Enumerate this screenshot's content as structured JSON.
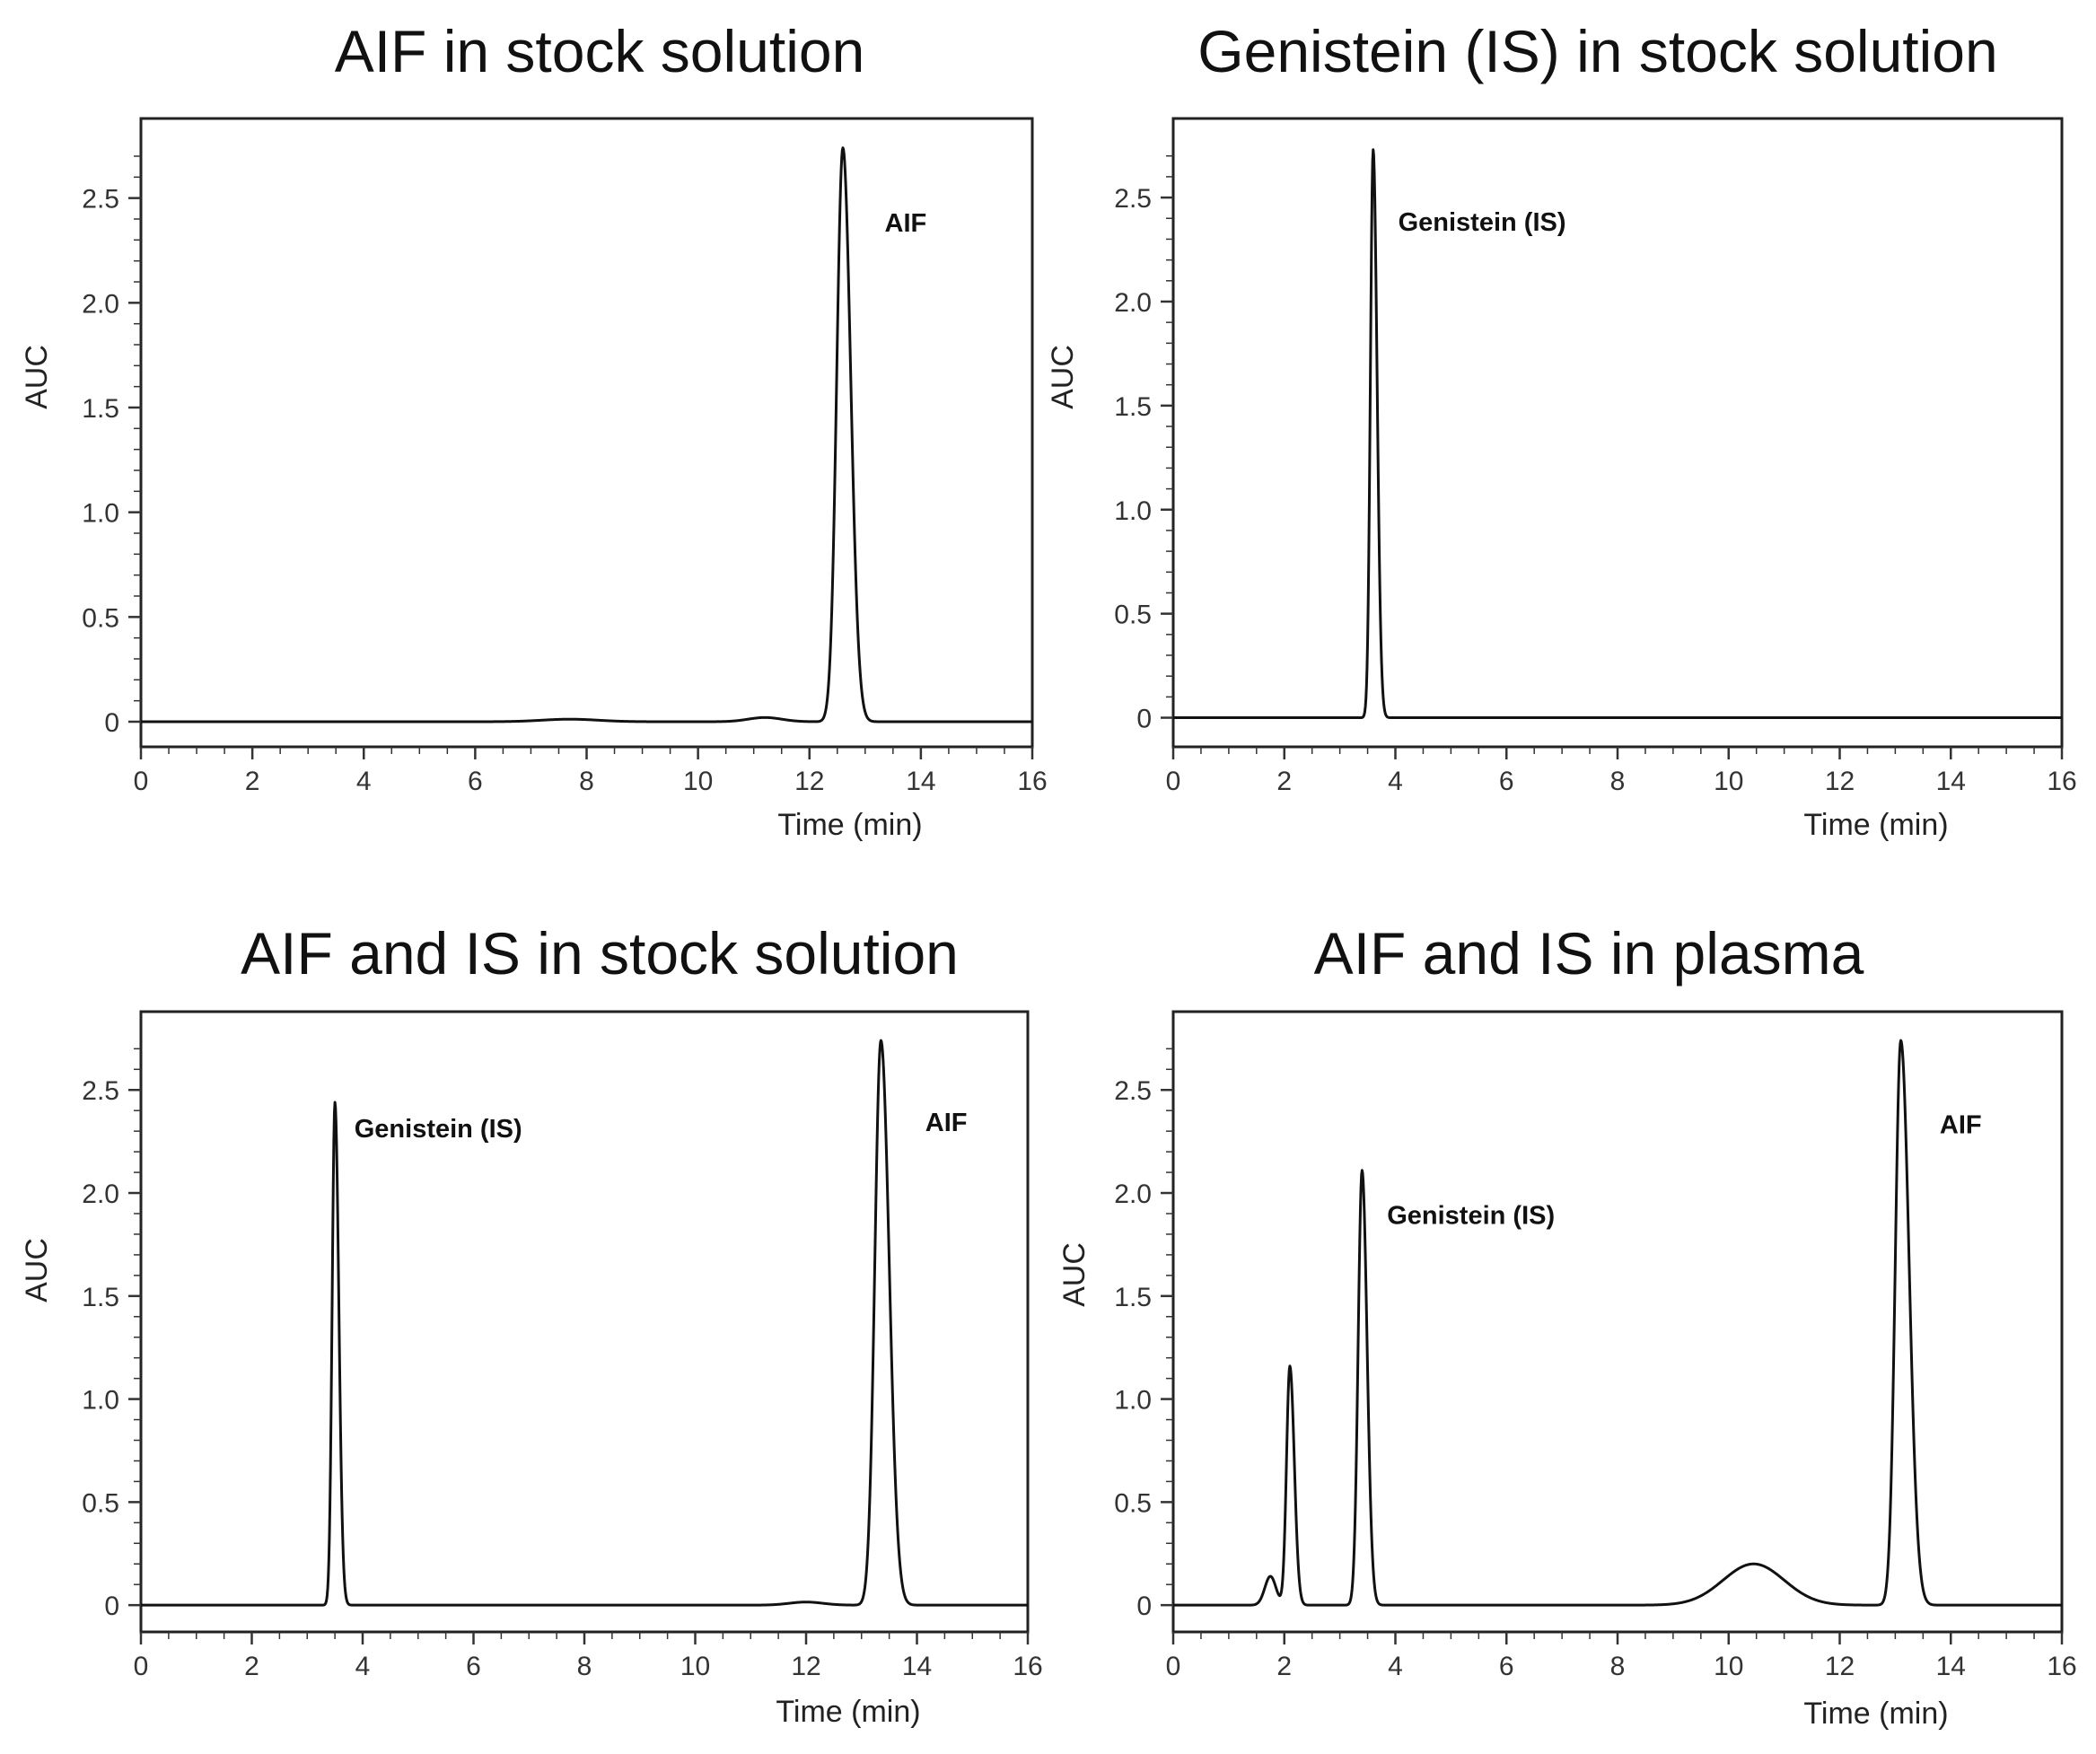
{
  "chart_data": [
    {
      "type": "line",
      "title": "AIF in stock solution",
      "xlabel": "Time (min)",
      "ylabel": "AUC",
      "xlim": [
        0,
        16
      ],
      "ylim": [
        -0.12,
        2.88
      ],
      "xticks": [
        0,
        2,
        4,
        6,
        8,
        10,
        12,
        14,
        16
      ],
      "yticks": [
        0,
        0.5,
        1.0,
        1.5,
        2.0,
        2.5
      ],
      "ytick_labels": [
        "0",
        "0.5",
        "1.0",
        "1.5",
        "2.0",
        "2.5"
      ],
      "grid": false,
      "peaks": [
        {
          "label": "AIF",
          "rt": 12.6,
          "height": 2.74,
          "width_left": 0.11,
          "width_right": 0.14,
          "label_x": 13.35,
          "label_y": 2.34
        }
      ],
      "humps": [
        {
          "center": 7.7,
          "height": 0.012,
          "width": 0.5
        },
        {
          "center": 11.2,
          "height": 0.02,
          "width": 0.3
        }
      ],
      "baseline": 0.0
    },
    {
      "type": "line",
      "title": "Genistein (IS) in stock solution",
      "xlabel": "Time (min)",
      "ylabel": "AUC",
      "xlim": [
        0,
        16
      ],
      "ylim": [
        -0.14,
        2.88
      ],
      "xticks": [
        0,
        2,
        4,
        6,
        8,
        10,
        12,
        14,
        16
      ],
      "yticks": [
        0,
        0.5,
        1.0,
        1.5,
        2.0,
        2.5
      ],
      "ytick_labels": [
        "0",
        "0.5",
        "1.0",
        "1.5",
        "2.0",
        "2.5"
      ],
      "grid": false,
      "peaks": [
        {
          "label": "Genistein (IS)",
          "rt": 3.6,
          "height": 2.73,
          "width_left": 0.05,
          "width_right": 0.07,
          "label_x": 4.05,
          "label_y": 2.34
        }
      ],
      "humps": [],
      "baseline": 0.0
    },
    {
      "type": "line",
      "title": "AIF and IS in stock solution",
      "xlabel": "Time (min)",
      "ylabel": "AUC",
      "xlim": [
        0,
        16
      ],
      "ylim": [
        -0.13,
        2.88
      ],
      "xticks": [
        0,
        2,
        4,
        6,
        8,
        10,
        12,
        14,
        16
      ],
      "yticks": [
        0,
        0.5,
        1.0,
        1.5,
        2.0,
        2.5
      ],
      "ytick_labels": [
        "0",
        "0.5",
        "1.0",
        "1.5",
        "2.0",
        "2.5"
      ],
      "grid": false,
      "peaks": [
        {
          "label": "Genistein (IS)",
          "rt": 3.5,
          "height": 2.44,
          "width_left": 0.05,
          "width_right": 0.07,
          "label_x": 3.85,
          "label_y": 2.27
        },
        {
          "label": "AIF",
          "rt": 13.35,
          "height": 2.74,
          "width_left": 0.11,
          "width_right": 0.15,
          "label_x": 14.15,
          "label_y": 2.3
        }
      ],
      "humps": [
        {
          "center": 12.0,
          "height": 0.015,
          "width": 0.3
        }
      ],
      "baseline": 0.0
    },
    {
      "type": "line",
      "title": "AIF and IS in plasma",
      "xlabel": "Time (min)",
      "ylabel": "AUC",
      "xlim": [
        0,
        16
      ],
      "ylim": [
        -0.13,
        2.88
      ],
      "xticks": [
        0,
        2,
        4,
        6,
        8,
        10,
        12,
        14,
        16
      ],
      "yticks": [
        0,
        0.5,
        1.0,
        1.5,
        2.0,
        2.5
      ],
      "ytick_labels": [
        "0",
        "0.5",
        "1.0",
        "1.5",
        "2.0",
        "2.5"
      ],
      "grid": false,
      "peaks": [
        {
          "label": "",
          "rt": 2.1,
          "height": 1.16,
          "width_left": 0.06,
          "width_right": 0.08
        },
        {
          "label": "Genistein (IS)",
          "rt": 3.4,
          "height": 2.11,
          "width_left": 0.07,
          "width_right": 0.09,
          "label_x": 3.85,
          "label_y": 1.85
        },
        {
          "label": "AIF",
          "rt": 13.1,
          "height": 2.74,
          "width_left": 0.1,
          "width_right": 0.15,
          "label_x": 13.8,
          "label_y": 2.29
        }
      ],
      "humps": [
        {
          "center": 1.75,
          "height": 0.14,
          "width": 0.1
        },
        {
          "center": 10.45,
          "height": 0.2,
          "width": 0.55
        }
      ],
      "baseline": 0.0
    }
  ]
}
